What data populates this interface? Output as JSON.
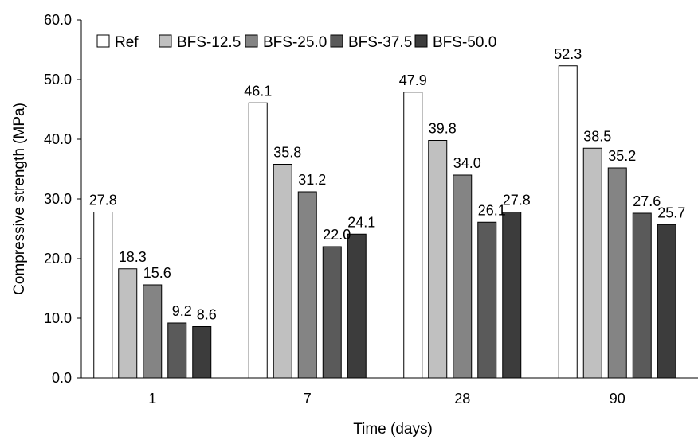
{
  "chart_data": {
    "type": "bar",
    "title": "",
    "xlabel": "Time (days)",
    "ylabel": "Compressive strength (MPa)",
    "categories": [
      "1",
      "7",
      "28",
      "90"
    ],
    "ylim": [
      0,
      60
    ],
    "yticks": [
      "0.0",
      "10.0",
      "20.0",
      "30.0",
      "40.0",
      "50.0",
      "60.0"
    ],
    "grid": false,
    "legend_position": "top-left",
    "series": [
      {
        "name": "Ref",
        "color": "#ffffff",
        "values": [
          27.8,
          46.1,
          47.9,
          52.3
        ],
        "labels": [
          "27.8",
          "46.1",
          "47.9",
          "52.3"
        ]
      },
      {
        "name": "BFS-12.5",
        "color": "#c0c0c0",
        "values": [
          18.3,
          35.8,
          39.8,
          38.5
        ],
        "labels": [
          "18.3",
          "35.8",
          "39.8",
          "38.5"
        ]
      },
      {
        "name": "BFS-25.0",
        "color": "#848484",
        "values": [
          15.6,
          31.2,
          34.0,
          35.2
        ],
        "labels": [
          "15.6",
          "31.2",
          "34.0",
          "35.2"
        ]
      },
      {
        "name": "BFS-37.5",
        "color": "#5a5a5a",
        "values": [
          9.2,
          22.0,
          26.1,
          27.6
        ],
        "labels": [
          "9.2",
          "22.0",
          "26.1",
          "27.6"
        ]
      },
      {
        "name": "BFS-50.0",
        "color": "#3c3c3c",
        "values": [
          8.6,
          24.1,
          27.8,
          25.7
        ],
        "labels": [
          "8.6",
          "24.1",
          "27.8",
          "25.7"
        ]
      }
    ]
  }
}
